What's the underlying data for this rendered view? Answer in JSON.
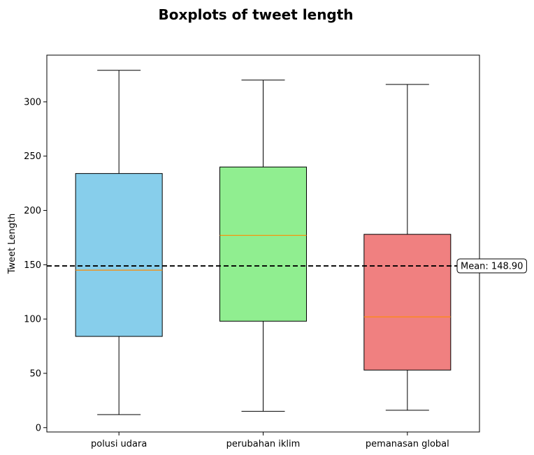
{
  "chart_data": {
    "type": "boxplot",
    "title": "Boxplots of tweet length",
    "xlabel": "",
    "ylabel": "Tweet Length",
    "ylim": [
      -4,
      343
    ],
    "yticks": [
      0,
      50,
      100,
      150,
      200,
      250,
      300
    ],
    "grid": false,
    "categories": [
      "polusi udara",
      "perubahan iklim",
      "pemanasan global"
    ],
    "boxes": [
      {
        "category": "polusi udara",
        "min": 12,
        "q1": 84,
        "median": 145,
        "q3": 234,
        "max": 329,
        "color": "#87CEEB"
      },
      {
        "category": "perubahan iklim",
        "min": 15,
        "q1": 98,
        "median": 177,
        "q3": 240,
        "max": 320,
        "color": "#90EE90"
      },
      {
        "category": "pemanasan global",
        "min": 16,
        "q1": 53,
        "median": 102,
        "q3": 178,
        "max": 316,
        "color": "#F08080"
      }
    ],
    "mean_line": {
      "value": 148.9,
      "label": "Mean: 148.90",
      "style": "dashed",
      "color": "#000000"
    },
    "median_color": "#FF8C00"
  }
}
